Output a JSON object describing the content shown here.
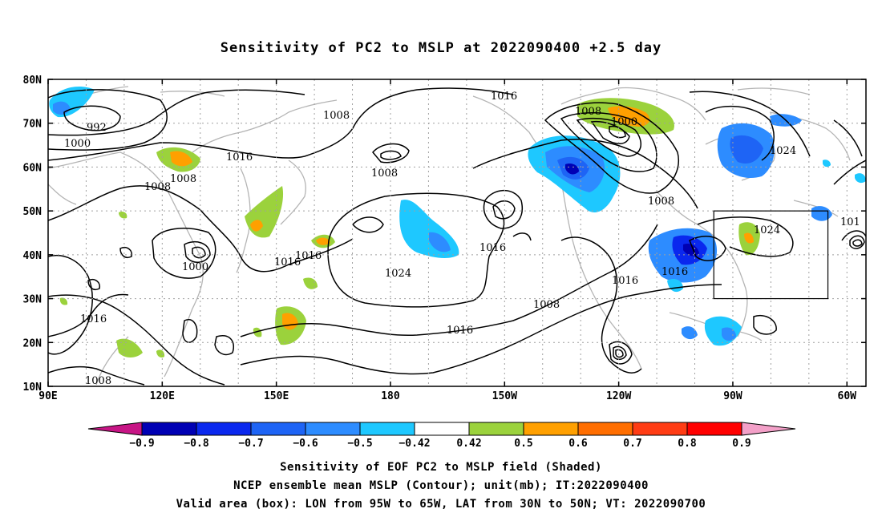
{
  "title": "Sensitivity of PC2 to MSLP at 2022090400 +2.5 day",
  "map": {
    "lat_labels": [
      "80N",
      "70N",
      "60N",
      "50N",
      "40N",
      "30N",
      "20N",
      "10N"
    ],
    "lon_labels": [
      "90E",
      "120E",
      "150E",
      "180",
      "150W",
      "120W",
      "90W",
      "60W"
    ],
    "extent": {
      "lon_min": 90,
      "lon_max": 305,
      "lat_min": 10,
      "lat_max": 80
    },
    "valid_box": {
      "lon_w": -95,
      "lon_e": -65,
      "lat_s": 30,
      "lat_n": 50
    },
    "contour_labels": [
      "992",
      "1000",
      "1008",
      "1016",
      "1024",
      "1000",
      "1008",
      "1016",
      "1024",
      "1016",
      "1016",
      "1008",
      "1016",
      "1008",
      "1016",
      "1008",
      "1000",
      "1016",
      "1008",
      "1024",
      "1016",
      "1008",
      "101"
    ]
  },
  "colorbar": {
    "labels": [
      "-0.9",
      "-0.8",
      "-0.7",
      "-0.6",
      "-0.5",
      "-0.42",
      "0.42",
      "0.5",
      "0.6",
      "0.7",
      "0.8",
      "0.9"
    ],
    "colors": [
      "#0000b4",
      "#0a28ee",
      "#1e64f5",
      "#2d8cff",
      "#1ec8ff",
      "#ffffff",
      "#9bd23c",
      "#ffa000",
      "#ff6e00",
      "#ff3c14",
      "#ff0000"
    ],
    "low_end_color": "#c71585",
    "high_end_color": "#f3a0c8"
  },
  "captions": [
    "Sensitivity of EOF PC2 to MSLP field (Shaded)",
    "NCEP ensemble mean MSLP (Contour); unit(mb); IT:2022090400",
    "Valid area (box): LON from 95W to 65W, LAT from 30N to 50N; VT: 2022090700"
  ]
}
